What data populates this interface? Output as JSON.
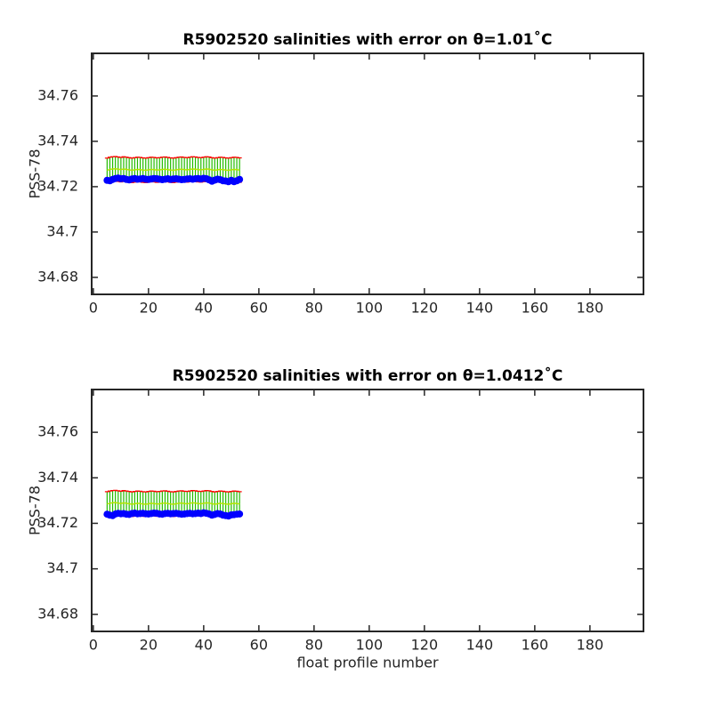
{
  "chart_data": [
    {
      "type": "errorbar",
      "title": "R5902520 salinities with error on θ=1.01˚C",
      "ylabel": "PSS-78",
      "x": [
        5,
        6,
        7,
        8,
        9,
        10,
        11,
        12,
        13,
        14,
        15,
        16,
        17,
        18,
        19,
        20,
        21,
        22,
        23,
        24,
        25,
        26,
        27,
        28,
        29,
        30,
        31,
        32,
        33,
        34,
        35,
        36,
        37,
        38,
        39,
        40,
        41,
        42,
        43,
        44,
        45,
        46,
        47,
        48,
        49,
        50,
        51,
        52,
        53
      ],
      "salinity": {
        "color": "#0000ff",
        "values": [
          34.7228,
          34.7226,
          34.7232,
          34.7236,
          34.7238,
          34.7235,
          34.7236,
          34.7232,
          34.723,
          34.7234,
          34.7236,
          34.7233,
          34.7234,
          34.7236,
          34.7233,
          34.7232,
          34.7234,
          34.7236,
          34.7235,
          34.7233,
          34.7231,
          34.7233,
          34.7235,
          34.7232,
          34.7234,
          34.7235,
          34.7233,
          34.7231,
          34.7232,
          34.7234,
          34.7235,
          34.7233,
          34.7235,
          34.7236,
          34.7234,
          34.7237,
          34.7235,
          34.723,
          34.7224,
          34.7229,
          34.7233,
          34.7231,
          34.7226,
          34.7225,
          34.7222,
          34.7228,
          34.7222,
          34.7226,
          34.7232
        ]
      },
      "mapped": {
        "color": "#b4e600",
        "error_color": "#22bb00",
        "cap_color": "#ff0000",
        "values": [
          34.7272,
          34.7276,
          34.7278,
          34.7279,
          34.7277,
          34.7275,
          34.7278,
          34.7276,
          34.7274,
          34.7272,
          34.7274,
          34.7276,
          34.7275,
          34.7273,
          34.7272,
          34.7274,
          34.7276,
          34.7275,
          34.7273,
          34.7274,
          34.7276,
          34.7277,
          34.7275,
          34.7273,
          34.7272,
          34.7274,
          34.7276,
          34.7277,
          34.7275,
          34.7274,
          34.7276,
          34.7278,
          34.7277,
          34.7275,
          34.7274,
          34.7276,
          34.7278,
          34.7277,
          34.7274,
          34.7272,
          34.7274,
          34.7276,
          34.7275,
          34.7273,
          34.7272,
          34.7274,
          34.7276,
          34.7275,
          34.7273
        ],
        "errors": [
          0.0054,
          0.0054,
          0.0054,
          0.0054,
          0.0054,
          0.0054,
          0.0054,
          0.0054,
          0.0054,
          0.0054,
          0.0054,
          0.0054,
          0.0054,
          0.0054,
          0.0054,
          0.0054,
          0.0054,
          0.0054,
          0.0054,
          0.0054,
          0.0054,
          0.0054,
          0.0054,
          0.0054,
          0.0054,
          0.0054,
          0.0054,
          0.0054,
          0.0054,
          0.0054,
          0.0054,
          0.0054,
          0.0054,
          0.0054,
          0.0054,
          0.0054,
          0.0054,
          0.0054,
          0.0054,
          0.0054,
          0.0054,
          0.0054,
          0.0054,
          0.0054,
          0.0054,
          0.0054,
          0.0054,
          0.0054,
          0.0054
        ]
      },
      "xlim": [
        -0.6,
        199.4
      ],
      "xticks": [
        0,
        20,
        40,
        60,
        80,
        100,
        120,
        140,
        160,
        180
      ],
      "ylim": [
        34.6725,
        34.7788
      ],
      "yticks": [
        34.68,
        34.7,
        34.72,
        34.74,
        34.76
      ]
    },
    {
      "type": "errorbar",
      "title": "R5902520 salinities with error on θ=1.0412˚C",
      "ylabel": "PSS-78",
      "xlabel": "float profile number",
      "x": [
        5,
        6,
        7,
        8,
        9,
        10,
        11,
        12,
        13,
        14,
        15,
        16,
        17,
        18,
        19,
        20,
        21,
        22,
        23,
        24,
        25,
        26,
        27,
        28,
        29,
        30,
        31,
        32,
        33,
        34,
        35,
        36,
        37,
        38,
        39,
        40,
        41,
        42,
        43,
        44,
        45,
        46,
        47,
        48,
        49,
        50,
        51,
        52,
        53
      ],
      "salinity": {
        "color": "#0000ff",
        "values": [
          34.724,
          34.7236,
          34.7234,
          34.7241,
          34.7244,
          34.7242,
          34.7243,
          34.724,
          34.7239,
          34.7243,
          34.7245,
          34.7242,
          34.7243,
          34.7244,
          34.7242,
          34.7241,
          34.7243,
          34.7245,
          34.7244,
          34.7241,
          34.724,
          34.7243,
          34.7244,
          34.7242,
          34.7243,
          34.7244,
          34.7242,
          34.724,
          34.7241,
          34.7243,
          34.7244,
          34.7242,
          34.7243,
          34.7245,
          34.7243,
          34.7246,
          34.7244,
          34.7241,
          34.7236,
          34.7239,
          34.7243,
          34.7241,
          34.7236,
          34.7234,
          34.7232,
          34.7237,
          34.7238,
          34.724,
          34.7241
        ]
      },
      "mapped": {
        "color": "#b4e600",
        "error_color": "#22bb00",
        "cap_color": "#ff0000",
        "values": [
          34.7285,
          34.7288,
          34.729,
          34.7291,
          34.7289,
          34.7287,
          34.729,
          34.7288,
          34.7286,
          34.7284,
          34.7286,
          34.7288,
          34.7287,
          34.7285,
          34.7284,
          34.7286,
          34.7288,
          34.7287,
          34.7285,
          34.7286,
          34.7288,
          34.7289,
          34.7287,
          34.7285,
          34.7284,
          34.7286,
          34.7288,
          34.7289,
          34.7287,
          34.7286,
          34.7288,
          34.729,
          34.7289,
          34.7287,
          34.7286,
          34.7288,
          34.729,
          34.7289,
          34.7286,
          34.7284,
          34.7286,
          34.7288,
          34.7287,
          34.7285,
          34.7284,
          34.7286,
          34.7288,
          34.7287,
          34.7285
        ],
        "errors": [
          0.0054,
          0.0054,
          0.0054,
          0.0054,
          0.0054,
          0.0054,
          0.0054,
          0.0054,
          0.0054,
          0.0054,
          0.0054,
          0.0054,
          0.0054,
          0.0054,
          0.0054,
          0.0054,
          0.0054,
          0.0054,
          0.0054,
          0.0054,
          0.0054,
          0.0054,
          0.0054,
          0.0054,
          0.0054,
          0.0054,
          0.0054,
          0.0054,
          0.0054,
          0.0054,
          0.0054,
          0.0054,
          0.0054,
          0.0054,
          0.0054,
          0.0054,
          0.0054,
          0.0054,
          0.0054,
          0.0054,
          0.0054,
          0.0054,
          0.0054,
          0.0054,
          0.0054,
          0.0054,
          0.0054,
          0.0054,
          0.0054
        ]
      },
      "xlim": [
        -0.6,
        199.4
      ],
      "xticks": [
        0,
        20,
        40,
        60,
        80,
        100,
        120,
        140,
        160,
        180
      ],
      "ylim": [
        34.6725,
        34.7788
      ],
      "yticks": [
        34.68,
        34.7,
        34.72,
        34.74,
        34.76
      ]
    }
  ]
}
